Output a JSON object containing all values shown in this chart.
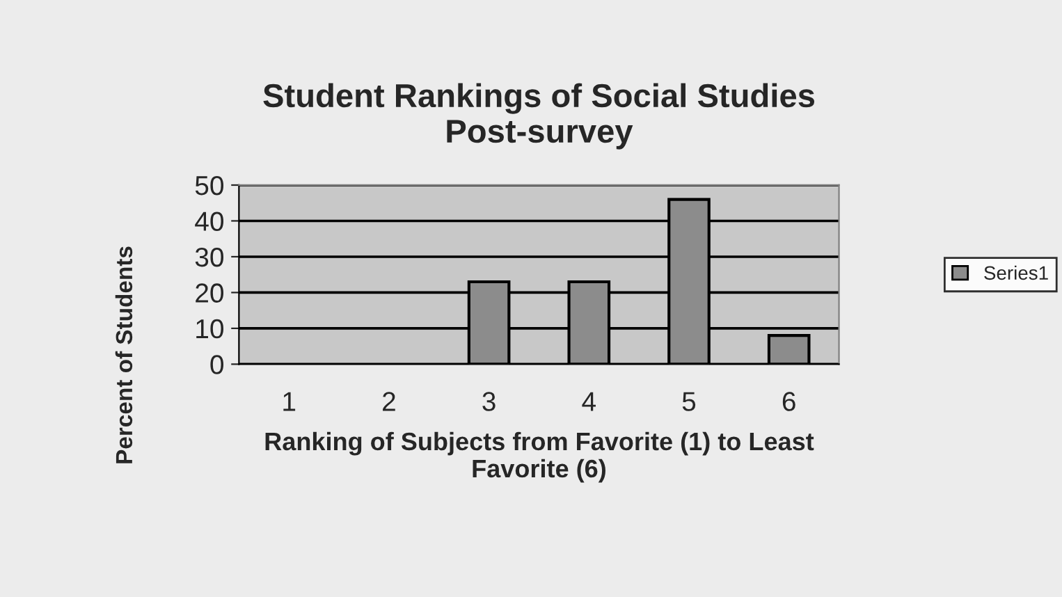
{
  "chart_data": {
    "type": "bar",
    "title": "Student Rankings of Social Studies\nPost-survey",
    "xlabel": "Ranking of Subjects from Favorite (1) to Least\nFavorite (6)",
    "ylabel": "Percent of Students",
    "categories": [
      "1",
      "2",
      "3",
      "4",
      "5",
      "6"
    ],
    "series": [
      {
        "name": "Series1",
        "color": "#8c8c8c",
        "values": [
          0,
          0,
          23,
          23,
          46,
          8
        ]
      }
    ],
    "ylim": [
      0,
      50
    ],
    "yticks": [
      0,
      10,
      20,
      30,
      40,
      50
    ],
    "grid": "y",
    "legend": "right"
  }
}
